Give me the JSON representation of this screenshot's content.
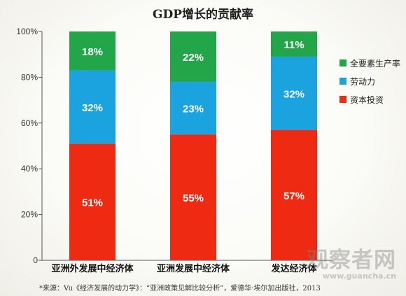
{
  "chart_data": {
    "type": "bar",
    "stacked": true,
    "title": "GDP增长的贡献率",
    "categories": [
      "亚洲外发展中经济体",
      "亚洲发展中经济体",
      "发达经济体"
    ],
    "series": [
      {
        "name": "资本投资",
        "color": "#ee2a12",
        "values": [
          51,
          55,
          57
        ],
        "labels": [
          "51%",
          "55%",
          "57%"
        ]
      },
      {
        "name": "劳动力",
        "color": "#1aa3df",
        "values": [
          32,
          23,
          32
        ],
        "labels": [
          "32%",
          "23%",
          "32%"
        ]
      },
      {
        "name": "全要素生产率",
        "color": "#23a64a",
        "values": [
          18,
          22,
          11
        ],
        "labels": [
          "18%",
          "22%",
          "11%"
        ]
      }
    ],
    "yticks": [
      "0",
      "20%",
      "40%",
      "60%",
      "80%",
      "100%"
    ],
    "ylim": [
      0,
      100
    ],
    "legend": {
      "position": "right",
      "order": [
        "全要素生产率",
        "劳动力",
        "资本投资"
      ]
    },
    "grid": false
  },
  "source_note": "*来源：Vu《经济发展的动力学》：“亚洲政策见解比较分析”，爱德华·埃尔加出版社，2013",
  "watermark": {
    "main": "观察者网",
    "sub": "www.guancha.cn"
  }
}
